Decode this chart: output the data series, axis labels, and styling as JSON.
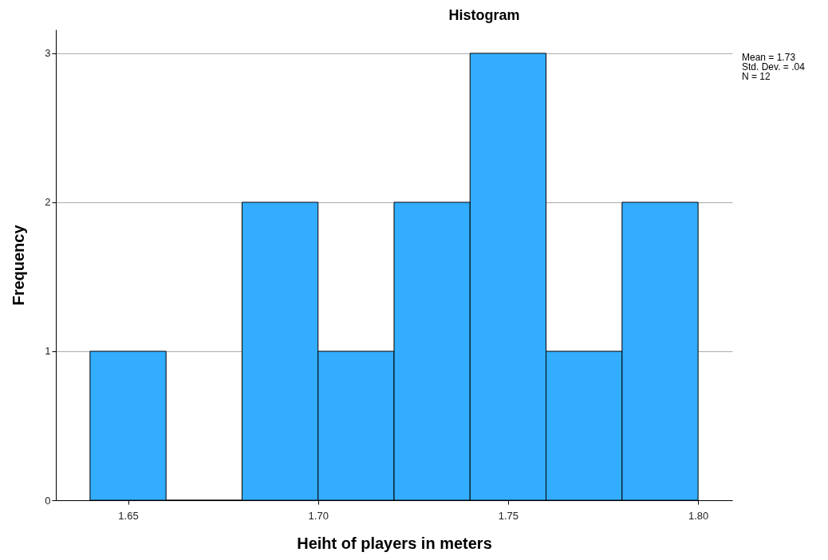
{
  "chart_data": {
    "type": "histogram",
    "title": "Histogram",
    "xlabel": "Heiht of players in meters",
    "ylabel": "Frequency",
    "bins": [
      1.64,
      1.66,
      1.68,
      1.7,
      1.72,
      1.74,
      1.76,
      1.78,
      1.8
    ],
    "values": [
      1,
      0,
      2,
      1,
      2,
      3,
      1,
      2
    ],
    "color": "#33adff",
    "xlim": [
      1.631,
      1.809
    ],
    "xticks": [
      1.65,
      {
        "value": 1.7,
        "label": "1.70"
      },
      1.75,
      {
        "value": 1.8,
        "label": "1.80"
      }
    ],
    "ylim": [
      0,
      3.16
    ],
    "yticks": [
      0,
      1,
      2,
      3
    ],
    "grid": "y",
    "annotations": [
      "Mean = 1.73",
      "Std. Dev. = .04",
      "N = 12"
    ]
  }
}
